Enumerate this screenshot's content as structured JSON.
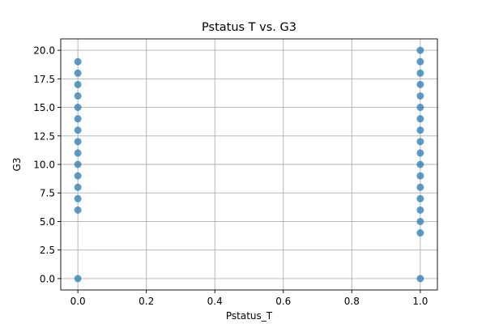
{
  "chart_data": {
    "type": "scatter",
    "title": "Pstatus T vs. G3",
    "xlabel": "Pstatus_T",
    "ylabel": "G3",
    "xlim": [
      -0.05,
      1.05
    ],
    "ylim": [
      -1.0,
      21.0
    ],
    "xticks": [
      0.0,
      0.2,
      0.4,
      0.6,
      0.8,
      1.0
    ],
    "xtick_labels": [
      "0.0",
      "0.2",
      "0.4",
      "0.6",
      "0.8",
      "1.0"
    ],
    "yticks": [
      0.0,
      2.5,
      5.0,
      7.5,
      10.0,
      12.5,
      15.0,
      17.5,
      20.0
    ],
    "ytick_labels": [
      "0.0",
      "2.5",
      "5.0",
      "7.5",
      "10.0",
      "12.5",
      "15.0",
      "17.5",
      "20.0"
    ],
    "grid": true,
    "marker_color": "#1f77b4",
    "points": [
      {
        "x": 0,
        "y": 0
      },
      {
        "x": 0,
        "y": 6
      },
      {
        "x": 0,
        "y": 7
      },
      {
        "x": 0,
        "y": 8
      },
      {
        "x": 0,
        "y": 9
      },
      {
        "x": 0,
        "y": 10
      },
      {
        "x": 0,
        "y": 11
      },
      {
        "x": 0,
        "y": 12
      },
      {
        "x": 0,
        "y": 13
      },
      {
        "x": 0,
        "y": 14
      },
      {
        "x": 0,
        "y": 15
      },
      {
        "x": 0,
        "y": 16
      },
      {
        "x": 0,
        "y": 17
      },
      {
        "x": 0,
        "y": 18
      },
      {
        "x": 0,
        "y": 19
      },
      {
        "x": 1,
        "y": 0
      },
      {
        "x": 1,
        "y": 4
      },
      {
        "x": 1,
        "y": 5
      },
      {
        "x": 1,
        "y": 6
      },
      {
        "x": 1,
        "y": 7
      },
      {
        "x": 1,
        "y": 8
      },
      {
        "x": 1,
        "y": 9
      },
      {
        "x": 1,
        "y": 10
      },
      {
        "x": 1,
        "y": 11
      },
      {
        "x": 1,
        "y": 12
      },
      {
        "x": 1,
        "y": 13
      },
      {
        "x": 1,
        "y": 14
      },
      {
        "x": 1,
        "y": 15
      },
      {
        "x": 1,
        "y": 16
      },
      {
        "x": 1,
        "y": 17
      },
      {
        "x": 1,
        "y": 18
      },
      {
        "x": 1,
        "y": 19
      },
      {
        "x": 1,
        "y": 20
      }
    ]
  }
}
